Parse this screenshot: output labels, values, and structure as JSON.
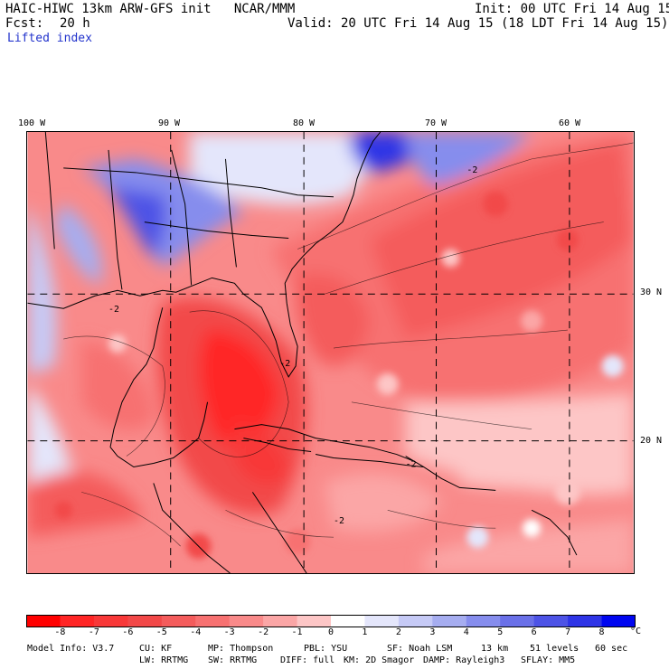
{
  "header": {
    "title_left": "HAIC-HIWC 13km ARW-GFS init   NCAR/MMM",
    "init": "Init: 00 UTC Fri 14 Aug 15",
    "fcst_label": "Fcst:",
    "fcst_value": "20 h",
    "valid": "Valid: 20 UTC Fri 14 Aug 15 (18 LDT Fri 14 Aug 15)",
    "field": "Lifted index"
  },
  "map": {
    "lon_labels": [
      "100 W",
      "90 W",
      "80 W",
      "70 W",
      "60 W"
    ],
    "lat_labels": [
      "30 N",
      "20 N"
    ],
    "contour_labels": [
      "-2",
      "-2",
      "-2",
      "-2",
      "-2"
    ]
  },
  "colorbar": {
    "ticks": [
      "-8",
      "-7",
      "-6",
      "-5",
      "-4",
      "-3",
      "-2",
      "-1",
      "0",
      "1",
      "2",
      "3",
      "4",
      "5",
      "6",
      "7",
      "8"
    ],
    "unit": "°C",
    "colors": [
      "#ff0000",
      "#ff2525",
      "#f83838",
      "#f24848",
      "#f45c5c",
      "#f77171",
      "#f98a8a",
      "#fba6a6",
      "#fdc6c6",
      "#ffffff",
      "#e4e6fb",
      "#c6caf6",
      "#a6adf0",
      "#868ded",
      "#6a70e8",
      "#4d53e6",
      "#2e34e6",
      "#0006f0"
    ]
  },
  "model_info": {
    "line1": {
      "model": "Model Info: V3.7",
      "cu": "CU: KF",
      "mp": "MP: Thompson",
      "pbl": "PBL: YSU",
      "sf": "SF: Noah LSM",
      "res": "13 km",
      "levels": "51 levels",
      "dt": "60 sec"
    },
    "line2": {
      "lw": "LW: RRTMG",
      "sw": "SW: RRTMG",
      "diff": "DIFF: full",
      "km": "KM: 2D Smagor",
      "damp": "DAMP: Rayleigh3",
      "sflay": "SFLAY: MM5"
    }
  }
}
